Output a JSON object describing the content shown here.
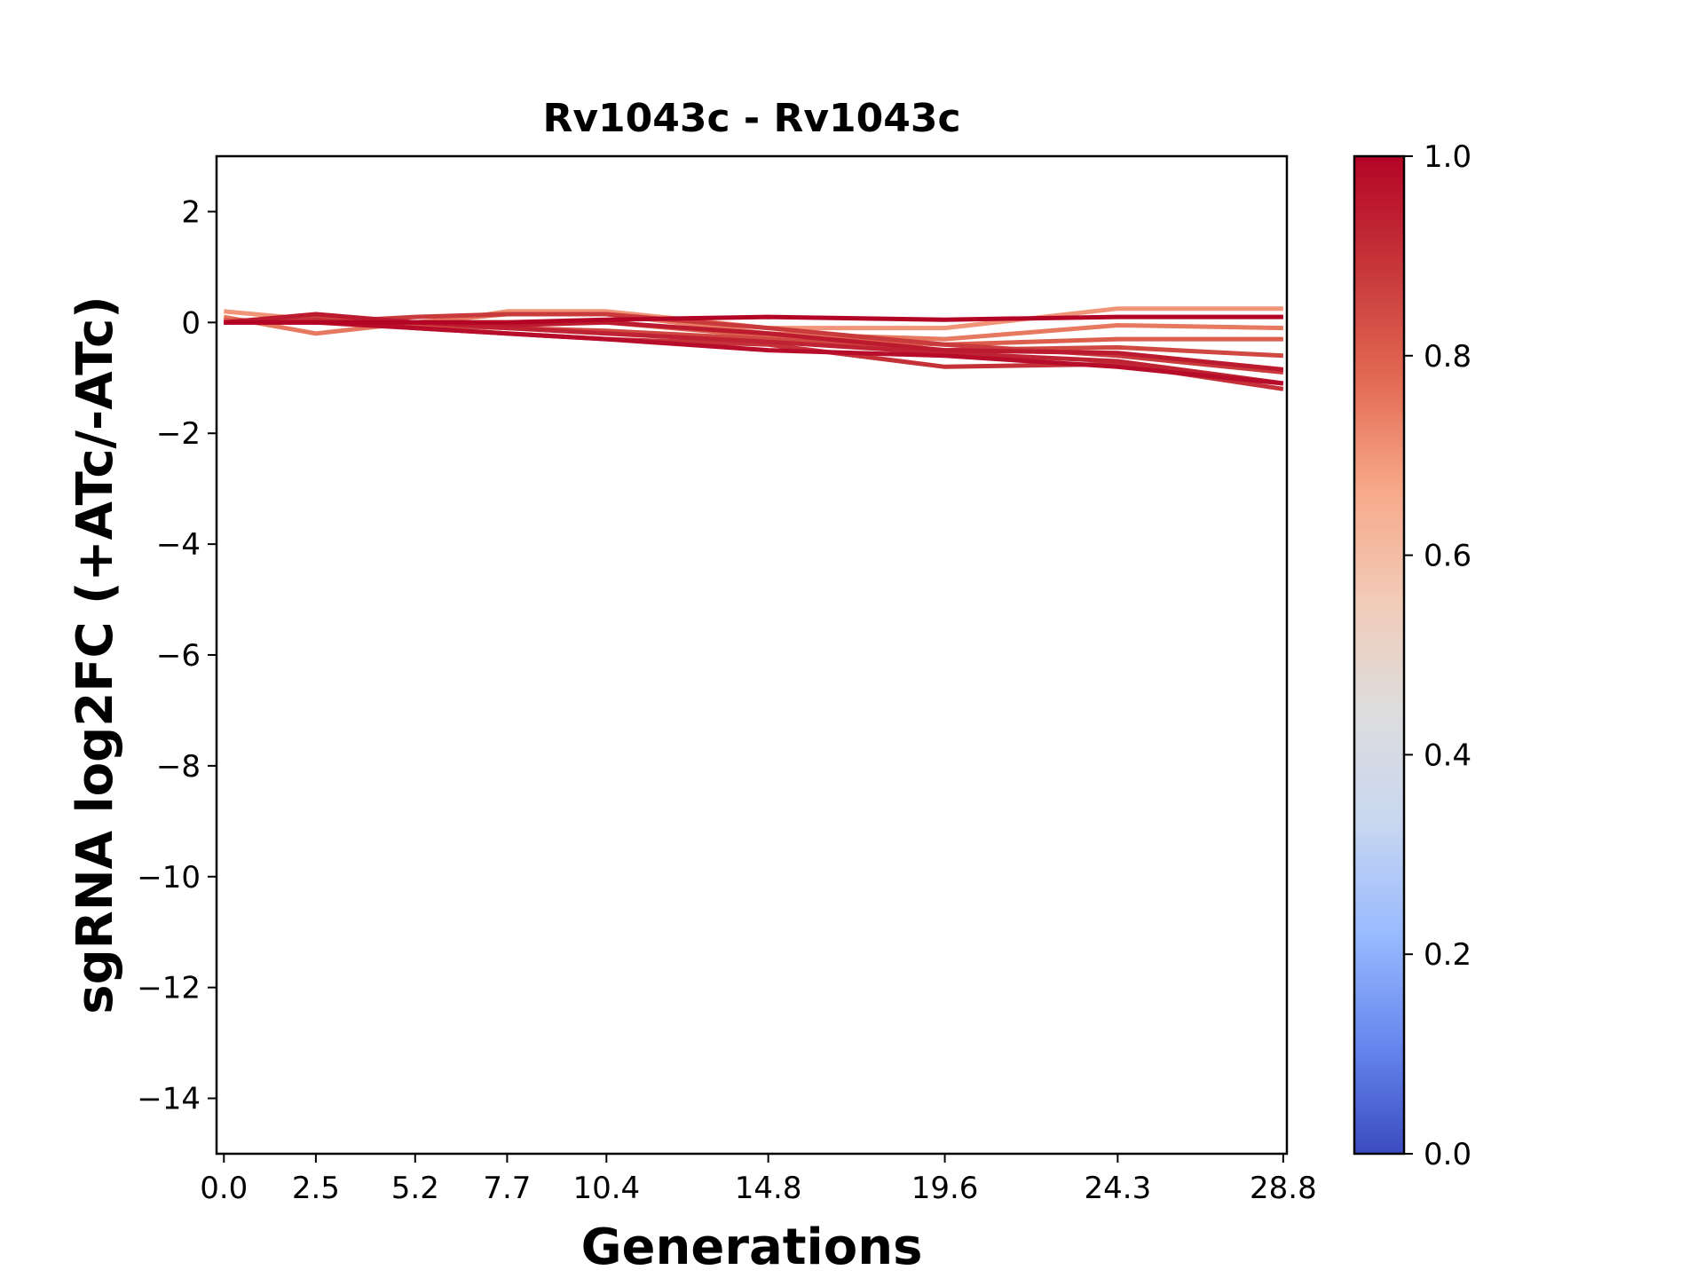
{
  "chart_data": {
    "type": "line",
    "title": "Rv1043c - Rv1043c",
    "xlabel": "Generations",
    "ylabel": "sgRNA log2FC (+ATc/-ATc)",
    "x_ticks": [
      "0.0",
      "2.5",
      "5.2",
      "7.7",
      "10.4",
      "14.8",
      "19.6",
      "24.3",
      "28.8"
    ],
    "x": [
      0.0,
      2.5,
      5.2,
      7.7,
      10.4,
      14.8,
      19.6,
      24.3,
      28.8
    ],
    "xlim": [
      -0.2,
      28.9
    ],
    "ylim": [
      -15,
      3
    ],
    "y_ticks": [
      {
        "value": 2,
        "label": "2"
      },
      {
        "value": 0,
        "label": "0"
      },
      {
        "value": -2,
        "label": "−2"
      },
      {
        "value": -4,
        "label": "−4"
      },
      {
        "value": -6,
        "label": "−6"
      },
      {
        "value": -8,
        "label": "−8"
      },
      {
        "value": -10,
        "label": "−10"
      },
      {
        "value": -12,
        "label": "−12"
      },
      {
        "value": -14,
        "label": "−14"
      }
    ],
    "colorbar": {
      "min": 0.0,
      "max": 1.0,
      "ticks": [
        {
          "value": 0.0,
          "label": "0.0"
        },
        {
          "value": 0.2,
          "label": "0.2"
        },
        {
          "value": 0.4,
          "label": "0.4"
        },
        {
          "value": 0.6,
          "label": "0.6"
        },
        {
          "value": 0.8,
          "label": "0.8"
        },
        {
          "value": 1.0,
          "label": "1.0"
        }
      ],
      "colormap": "coolwarm",
      "stops": [
        "#3b4cc0",
        "#6788ee",
        "#9abbff",
        "#c9d7f0",
        "#dddddd",
        "#f2cbb7",
        "#f7a889",
        "#e26952",
        "#c6363a",
        "#b40426"
      ]
    },
    "series": [
      {
        "color_value": 0.7,
        "values": [
          0.2,
          0.05,
          -0.05,
          0.2,
          0.2,
          -0.1,
          -0.1,
          0.25,
          0.25
        ]
      },
      {
        "color_value": 0.75,
        "values": [
          0.1,
          -0.2,
          0.0,
          0.15,
          0.15,
          -0.2,
          -0.3,
          -0.05,
          -0.1
        ]
      },
      {
        "color_value": 0.8,
        "values": [
          0.05,
          0.0,
          0.0,
          0.0,
          0.0,
          -0.25,
          -0.4,
          -0.3,
          -0.3
        ]
      },
      {
        "color_value": 0.85,
        "values": [
          0.0,
          0.1,
          -0.05,
          -0.1,
          -0.15,
          -0.3,
          -0.5,
          -0.45,
          -0.6
        ]
      },
      {
        "color_value": 0.88,
        "values": [
          0.0,
          0.0,
          0.1,
          0.15,
          0.15,
          -0.1,
          -0.4,
          -0.6,
          -0.9
        ]
      },
      {
        "color_value": 0.9,
        "values": [
          0.0,
          0.05,
          -0.1,
          -0.2,
          -0.3,
          -0.4,
          -0.8,
          -0.75,
          -1.2
        ]
      },
      {
        "color_value": 0.93,
        "values": [
          0.0,
          0.0,
          0.0,
          -0.1,
          -0.2,
          -0.35,
          -0.55,
          -0.7,
          -1.1
        ]
      },
      {
        "color_value": 0.95,
        "values": [
          0.0,
          0.15,
          0.0,
          -0.05,
          0.0,
          -0.2,
          -0.5,
          -0.55,
          -0.85
        ]
      },
      {
        "color_value": 0.98,
        "values": [
          0.0,
          0.0,
          -0.1,
          -0.2,
          -0.3,
          -0.5,
          -0.6,
          -0.8,
          -1.1
        ]
      },
      {
        "color_value": 1.0,
        "values": [
          0.0,
          0.0,
          0.0,
          0.0,
          0.05,
          0.1,
          0.05,
          0.1,
          0.1
        ]
      }
    ]
  }
}
